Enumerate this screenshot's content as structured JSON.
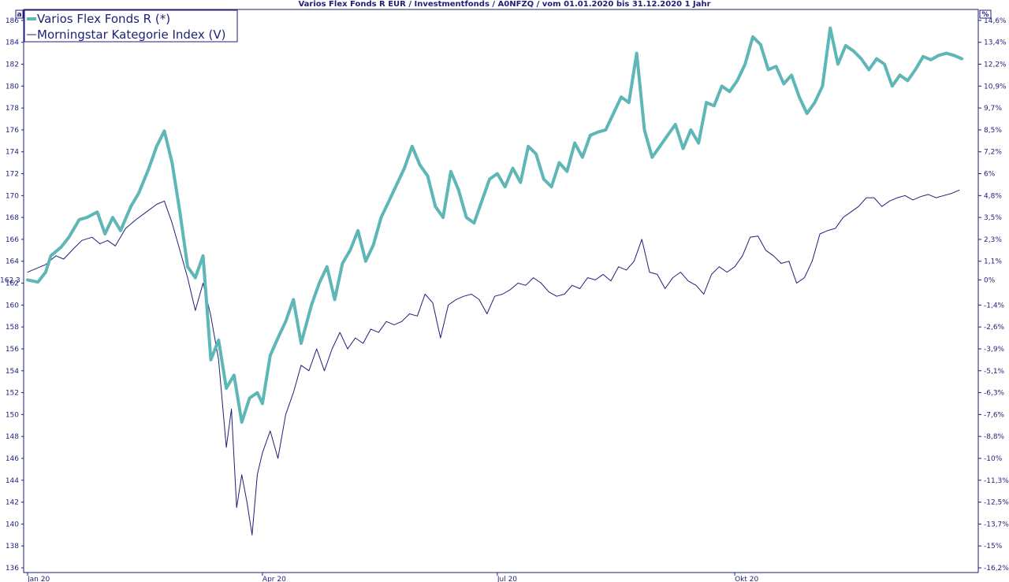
{
  "chart_data": {
    "type": "line",
    "title": "Varios Flex Fonds R EUR / Investmentfonds / A0NFZQ / vom 01.01.2020 bis 31.12.2020 1 Jahr",
    "left_axis_unit": "a",
    "right_axis_unit": "%",
    "ylim": [
      136,
      187
    ],
    "y_ticks": [
      136,
      138,
      140,
      142,
      144,
      146,
      148,
      150,
      152,
      154,
      156,
      158,
      160,
      162,
      164,
      166,
      168,
      170,
      172,
      174,
      176,
      178,
      180,
      182,
      184,
      186
    ],
    "y_ref_label": "162,3",
    "y_ref_value": 162.3,
    "right_ticks": [
      {
        "label": "14,6%",
        "value": 186
      },
      {
        "label": "13,4%",
        "value": 184
      },
      {
        "label": "12,2%",
        "value": 182
      },
      {
        "label": "10,9%",
        "value": 180
      },
      {
        "label": "9,7%",
        "value": 178
      },
      {
        "label": "8,5%",
        "value": 176
      },
      {
        "label": "7,2%",
        "value": 174
      },
      {
        "label": "6%",
        "value": 172
      },
      {
        "label": "4,8%",
        "value": 170
      },
      {
        "label": "3,5%",
        "value": 168
      },
      {
        "label": "2,3%",
        "value": 166
      },
      {
        "label": "1,1%",
        "value": 164
      },
      {
        "label": "0%",
        "value": 162.3
      },
      {
        "label": "-1,4%",
        "value": 160
      },
      {
        "label": "-2,6%",
        "value": 158
      },
      {
        "label": "-3,9%",
        "value": 156
      },
      {
        "label": "-5,1%",
        "value": 154
      },
      {
        "label": "-6,3%",
        "value": 152
      },
      {
        "label": "-7,6%",
        "value": 150
      },
      {
        "label": "-8,8%",
        "value": 148
      },
      {
        "label": "-10%",
        "value": 146
      },
      {
        "label": "-11,3%",
        "value": 144
      },
      {
        "label": "-12,5%",
        "value": 142
      },
      {
        "label": "-13,7%",
        "value": 140
      },
      {
        "label": "-15%",
        "value": 138
      },
      {
        "label": "-16,2%",
        "value": 136
      }
    ],
    "x_range": [
      "2020-01-01",
      "2020-12-31"
    ],
    "x_ticks": [
      {
        "label": "Jan 20",
        "date": "2020-01-01"
      },
      {
        "label": "Apr 20",
        "date": "2020-04-01"
      },
      {
        "label": "Jul 20",
        "date": "2020-07-01"
      },
      {
        "label": "Okt 20",
        "date": "2020-10-01"
      }
    ],
    "grid": false,
    "legend_position": "top-left",
    "series": [
      {
        "name": "Varios Flex Fonds R (*)",
        "color": "#5fb6b6",
        "points": [
          [
            "2020-01-01",
            162.3
          ],
          [
            "2020-01-05",
            162.1
          ],
          [
            "2020-01-08",
            163.0
          ],
          [
            "2020-01-10",
            164.5
          ],
          [
            "2020-01-14",
            165.3
          ],
          [
            "2020-01-17",
            166.2
          ],
          [
            "2020-01-21",
            167.8
          ],
          [
            "2020-01-24",
            168.0
          ],
          [
            "2020-01-28",
            168.5
          ],
          [
            "2020-01-31",
            166.5
          ],
          [
            "2020-02-03",
            168.0
          ],
          [
            "2020-02-06",
            166.8
          ],
          [
            "2020-02-10",
            169.0
          ],
          [
            "2020-02-13",
            170.2
          ],
          [
            "2020-02-17",
            172.5
          ],
          [
            "2020-02-20",
            174.5
          ],
          [
            "2020-02-23",
            175.9
          ],
          [
            "2020-02-26",
            173.0
          ],
          [
            "2020-02-29",
            168.5
          ],
          [
            "2020-03-03",
            163.5
          ],
          [
            "2020-03-06",
            162.5
          ],
          [
            "2020-03-09",
            164.5
          ],
          [
            "2020-03-12",
            155.0
          ],
          [
            "2020-03-15",
            156.8
          ],
          [
            "2020-03-18",
            152.4
          ],
          [
            "2020-03-21",
            153.6
          ],
          [
            "2020-03-24",
            149.3
          ],
          [
            "2020-03-27",
            151.5
          ],
          [
            "2020-03-30",
            152.0
          ],
          [
            "2020-04-01",
            151.0
          ],
          [
            "2020-04-04",
            155.4
          ],
          [
            "2020-04-07",
            157.0
          ],
          [
            "2020-04-10",
            158.5
          ],
          [
            "2020-04-13",
            160.5
          ],
          [
            "2020-04-16",
            156.5
          ],
          [
            "2020-04-20",
            160.0
          ],
          [
            "2020-04-23",
            162.0
          ],
          [
            "2020-04-26",
            163.5
          ],
          [
            "2020-04-29",
            160.5
          ],
          [
            "2020-05-02",
            163.8
          ],
          [
            "2020-05-05",
            165.0
          ],
          [
            "2020-05-08",
            166.8
          ],
          [
            "2020-05-11",
            164.0
          ],
          [
            "2020-05-14",
            165.5
          ],
          [
            "2020-05-17",
            168.0
          ],
          [
            "2020-05-20",
            169.5
          ],
          [
            "2020-05-23",
            171.0
          ],
          [
            "2020-05-26",
            172.5
          ],
          [
            "2020-05-29",
            174.5
          ],
          [
            "2020-06-01",
            172.8
          ],
          [
            "2020-06-04",
            171.8
          ],
          [
            "2020-06-07",
            169.0
          ],
          [
            "2020-06-10",
            168.0
          ],
          [
            "2020-06-13",
            172.2
          ],
          [
            "2020-06-16",
            170.5
          ],
          [
            "2020-06-19",
            168.0
          ],
          [
            "2020-06-22",
            167.5
          ],
          [
            "2020-06-25",
            169.5
          ],
          [
            "2020-06-28",
            171.5
          ],
          [
            "2020-07-01",
            172.0
          ],
          [
            "2020-07-04",
            170.8
          ],
          [
            "2020-07-07",
            172.5
          ],
          [
            "2020-07-10",
            171.2
          ],
          [
            "2020-07-13",
            174.5
          ],
          [
            "2020-07-16",
            173.8
          ],
          [
            "2020-07-19",
            171.5
          ],
          [
            "2020-07-22",
            170.8
          ],
          [
            "2020-07-25",
            173.0
          ],
          [
            "2020-07-28",
            172.2
          ],
          [
            "2020-07-31",
            174.8
          ],
          [
            "2020-08-03",
            173.5
          ],
          [
            "2020-08-06",
            175.5
          ],
          [
            "2020-08-09",
            175.8
          ],
          [
            "2020-08-12",
            176.0
          ],
          [
            "2020-08-15",
            177.5
          ],
          [
            "2020-08-18",
            179.0
          ],
          [
            "2020-08-21",
            178.5
          ],
          [
            "2020-08-24",
            183.0
          ],
          [
            "2020-08-27",
            176.0
          ],
          [
            "2020-08-30",
            173.5
          ],
          [
            "2020-09-02",
            174.5
          ],
          [
            "2020-09-05",
            175.5
          ],
          [
            "2020-09-08",
            176.5
          ],
          [
            "2020-09-11",
            174.3
          ],
          [
            "2020-09-14",
            176.0
          ],
          [
            "2020-09-17",
            174.8
          ],
          [
            "2020-09-20",
            178.5
          ],
          [
            "2020-09-23",
            178.2
          ],
          [
            "2020-09-26",
            180.0
          ],
          [
            "2020-09-29",
            179.5
          ],
          [
            "2020-10-02",
            180.5
          ],
          [
            "2020-10-05",
            182.0
          ],
          [
            "2020-10-08",
            184.5
          ],
          [
            "2020-10-11",
            183.8
          ],
          [
            "2020-10-14",
            181.5
          ],
          [
            "2020-10-17",
            181.8
          ],
          [
            "2020-10-20",
            180.2
          ],
          [
            "2020-10-23",
            181.0
          ],
          [
            "2020-10-26",
            179.0
          ],
          [
            "2020-10-29",
            177.5
          ],
          [
            "2020-11-01",
            178.5
          ],
          [
            "2020-11-04",
            180.0
          ],
          [
            "2020-11-07",
            185.3
          ],
          [
            "2020-11-10",
            182.0
          ],
          [
            "2020-11-13",
            183.7
          ],
          [
            "2020-11-16",
            183.2
          ],
          [
            "2020-11-19",
            182.5
          ],
          [
            "2020-11-22",
            181.5
          ],
          [
            "2020-11-25",
            182.5
          ],
          [
            "2020-11-28",
            182.0
          ],
          [
            "2020-12-01",
            180.0
          ],
          [
            "2020-12-04",
            181.0
          ],
          [
            "2020-12-07",
            180.5
          ],
          [
            "2020-12-10",
            181.5
          ],
          [
            "2020-12-13",
            182.7
          ],
          [
            "2020-12-16",
            182.4
          ],
          [
            "2020-12-19",
            182.8
          ],
          [
            "2020-12-22",
            183.0
          ],
          [
            "2020-12-25",
            182.8
          ],
          [
            "2020-12-28",
            182.5
          ]
        ]
      },
      {
        "name": "Morningstar Kategorie Index (V)",
        "color": "#1f1f7a",
        "points": [
          [
            "2020-01-01",
            163.0
          ],
          [
            "2020-01-05",
            163.4
          ],
          [
            "2020-01-08",
            163.7
          ],
          [
            "2020-01-12",
            164.5
          ],
          [
            "2020-01-15",
            164.2
          ],
          [
            "2020-01-19",
            165.2
          ],
          [
            "2020-01-22",
            165.9
          ],
          [
            "2020-01-26",
            166.2
          ],
          [
            "2020-01-29",
            165.6
          ],
          [
            "2020-02-01",
            165.9
          ],
          [
            "2020-02-04",
            165.4
          ],
          [
            "2020-02-08",
            167.0
          ],
          [
            "2020-02-12",
            167.8
          ],
          [
            "2020-02-16",
            168.5
          ],
          [
            "2020-02-20",
            169.2
          ],
          [
            "2020-02-23",
            169.5
          ],
          [
            "2020-02-26",
            167.5
          ],
          [
            "2020-02-29",
            165.0
          ],
          [
            "2020-03-03",
            162.5
          ],
          [
            "2020-03-06",
            159.5
          ],
          [
            "2020-03-09",
            162.0
          ],
          [
            "2020-03-12",
            159.0
          ],
          [
            "2020-03-15",
            155.0
          ],
          [
            "2020-03-18",
            147.0
          ],
          [
            "2020-03-20",
            150.5
          ],
          [
            "2020-03-22",
            141.5
          ],
          [
            "2020-03-24",
            144.5
          ],
          [
            "2020-03-26",
            142.0
          ],
          [
            "2020-03-28",
            139.0
          ],
          [
            "2020-03-30",
            144.5
          ],
          [
            "2020-04-01",
            146.5
          ],
          [
            "2020-04-04",
            148.5
          ],
          [
            "2020-04-07",
            146.0
          ],
          [
            "2020-04-10",
            150.0
          ],
          [
            "2020-04-13",
            152.0
          ],
          [
            "2020-04-16",
            154.5
          ],
          [
            "2020-04-19",
            154.0
          ],
          [
            "2020-04-22",
            156.0
          ],
          [
            "2020-04-25",
            154.0
          ],
          [
            "2020-04-28",
            156.0
          ],
          [
            "2020-05-01",
            157.5
          ],
          [
            "2020-05-04",
            156.0
          ],
          [
            "2020-05-07",
            157.0
          ],
          [
            "2020-05-10",
            156.5
          ],
          [
            "2020-05-13",
            157.8
          ],
          [
            "2020-05-16",
            157.5
          ],
          [
            "2020-05-19",
            158.5
          ],
          [
            "2020-05-22",
            158.2
          ],
          [
            "2020-05-25",
            158.5
          ],
          [
            "2020-05-28",
            159.2
          ],
          [
            "2020-05-31",
            159.0
          ],
          [
            "2020-06-03",
            161.0
          ],
          [
            "2020-06-06",
            160.2
          ],
          [
            "2020-06-09",
            157.0
          ],
          [
            "2020-06-12",
            160.0
          ],
          [
            "2020-06-15",
            160.5
          ],
          [
            "2020-06-18",
            160.8
          ],
          [
            "2020-06-21",
            161.0
          ],
          [
            "2020-06-24",
            160.5
          ],
          [
            "2020-06-27",
            159.2
          ],
          [
            "2020-06-30",
            160.8
          ],
          [
            "2020-07-03",
            161.0
          ],
          [
            "2020-07-06",
            161.4
          ],
          [
            "2020-07-09",
            162.0
          ],
          [
            "2020-07-12",
            161.8
          ],
          [
            "2020-07-15",
            162.5
          ],
          [
            "2020-07-18",
            162.0
          ],
          [
            "2020-07-21",
            161.2
          ],
          [
            "2020-07-24",
            160.8
          ],
          [
            "2020-07-27",
            161.0
          ],
          [
            "2020-07-30",
            161.8
          ],
          [
            "2020-08-02",
            161.5
          ],
          [
            "2020-08-05",
            162.5
          ],
          [
            "2020-08-08",
            162.3
          ],
          [
            "2020-08-11",
            162.8
          ],
          [
            "2020-08-14",
            162.2
          ],
          [
            "2020-08-17",
            163.5
          ],
          [
            "2020-08-20",
            163.2
          ],
          [
            "2020-08-23",
            164.0
          ],
          [
            "2020-08-26",
            166.0
          ],
          [
            "2020-08-29",
            163.0
          ],
          [
            "2020-09-01",
            162.8
          ],
          [
            "2020-09-04",
            161.5
          ],
          [
            "2020-09-07",
            162.5
          ],
          [
            "2020-09-10",
            163.0
          ],
          [
            "2020-09-13",
            162.2
          ],
          [
            "2020-09-16",
            161.8
          ],
          [
            "2020-09-19",
            161.0
          ],
          [
            "2020-09-22",
            162.8
          ],
          [
            "2020-09-25",
            163.5
          ],
          [
            "2020-09-28",
            163.0
          ],
          [
            "2020-10-01",
            163.5
          ],
          [
            "2020-10-04",
            164.5
          ],
          [
            "2020-10-07",
            166.2
          ],
          [
            "2020-10-10",
            166.3
          ],
          [
            "2020-10-13",
            165.0
          ],
          [
            "2020-10-16",
            164.5
          ],
          [
            "2020-10-19",
            163.8
          ],
          [
            "2020-10-22",
            164.0
          ],
          [
            "2020-10-25",
            162.0
          ],
          [
            "2020-10-28",
            162.5
          ],
          [
            "2020-10-31",
            164.0
          ],
          [
            "2020-11-03",
            166.5
          ],
          [
            "2020-11-06",
            166.8
          ],
          [
            "2020-11-09",
            167.0
          ],
          [
            "2020-11-12",
            168.0
          ],
          [
            "2020-11-15",
            168.5
          ],
          [
            "2020-11-18",
            169.0
          ],
          [
            "2020-11-21",
            169.8
          ],
          [
            "2020-11-24",
            169.8
          ],
          [
            "2020-11-27",
            169.0
          ],
          [
            "2020-11-30",
            169.5
          ],
          [
            "2020-12-03",
            169.8
          ],
          [
            "2020-12-06",
            170.0
          ],
          [
            "2020-12-09",
            169.6
          ],
          [
            "2020-12-12",
            169.9
          ],
          [
            "2020-12-15",
            170.1
          ],
          [
            "2020-12-18",
            169.8
          ],
          [
            "2020-12-21",
            170.0
          ],
          [
            "2020-12-24",
            170.2
          ],
          [
            "2020-12-27",
            170.5
          ]
        ]
      }
    ]
  }
}
